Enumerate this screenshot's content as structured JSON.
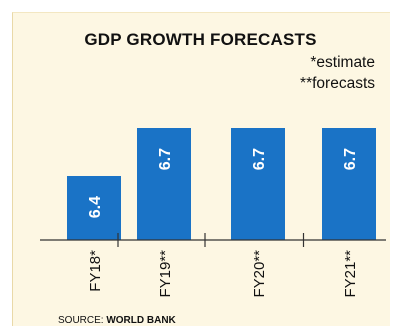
{
  "chart_data": {
    "type": "bar",
    "title": "GDP GROWTH FORECASTS",
    "categories": [
      "FY18*",
      "FY19**",
      "FY20**",
      "FY21**"
    ],
    "values": [
      6.4,
      6.7,
      6.7,
      6.7
    ],
    "value_labels": [
      "6.4",
      "6.7",
      "6.7",
      "6.7"
    ],
    "notes": [
      "*estimate",
      "**forecasts"
    ],
    "ylim": [
      6.0,
      6.8
    ],
    "xlabel": "",
    "ylabel": "",
    "grid": false,
    "bar_color": "#1a73c6"
  },
  "source": {
    "prefix": "SOURCE: ",
    "name": "WORLD BANK"
  },
  "colors": {
    "background": "#fdf7e3",
    "bar": "#1a73c6",
    "axis": "#333333",
    "text": "#111111"
  }
}
